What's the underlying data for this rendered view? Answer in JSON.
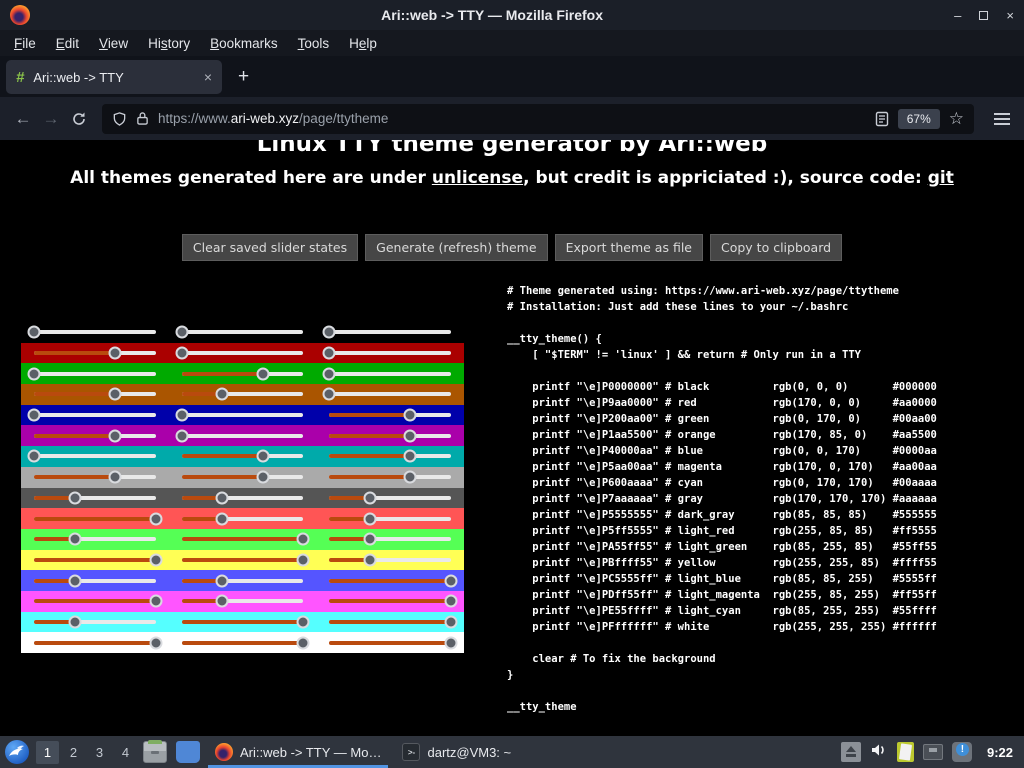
{
  "window": {
    "title": "Ari::web -> TTY — Mozilla Firefox",
    "controls": {
      "minimize": "–",
      "close": "×"
    }
  },
  "menubar": {
    "items": [
      {
        "name": "file",
        "pre": "",
        "key": "F",
        "post": "ile"
      },
      {
        "name": "edit",
        "pre": "",
        "key": "E",
        "post": "dit"
      },
      {
        "name": "view",
        "pre": "",
        "key": "V",
        "post": "iew"
      },
      {
        "name": "history",
        "pre": "Hi",
        "key": "s",
        "post": "tory"
      },
      {
        "name": "bookmarks",
        "pre": "",
        "key": "B",
        "post": "ookmarks"
      },
      {
        "name": "tools",
        "pre": "",
        "key": "T",
        "post": "ools"
      },
      {
        "name": "help",
        "pre": "H",
        "key": "e",
        "post": "lp"
      }
    ]
  },
  "tabbar": {
    "tab": {
      "favicon": "#",
      "label": "Ari::web -> TTY",
      "close": "×"
    },
    "new_tab": "+"
  },
  "navbar": {
    "back": "←",
    "forward": "→",
    "url": {
      "scheme": "https://www.",
      "domain": "ari-web.xyz",
      "path": "/page/ttytheme"
    },
    "zoom_level": "67%",
    "star": "☆"
  },
  "content": {
    "heading": "Linux TTY theme generator by Ari::web",
    "subtitle": {
      "part1": "All themes generated here are under ",
      "link1": "unlicense",
      "part2": ", but credit is appriciated :), source code: ",
      "link2": "git"
    },
    "buttons": [
      "Clear saved slider states",
      "Generate (refresh) theme",
      "Export theme as file",
      "Copy to clipboard"
    ],
    "sliders": {
      "rows": [
        {
          "name": "black",
          "hex": "#000000",
          "rgb": [
            0,
            0,
            0
          ]
        },
        {
          "name": "red",
          "hex": "#aa0000",
          "rgb": [
            170,
            0,
            0
          ]
        },
        {
          "name": "green",
          "hex": "#00aa00",
          "rgb": [
            0,
            170,
            0
          ]
        },
        {
          "name": "orange",
          "hex": "#aa5500",
          "rgb": [
            170,
            85,
            0
          ]
        },
        {
          "name": "blue",
          "hex": "#0000aa",
          "rgb": [
            0,
            0,
            170
          ]
        },
        {
          "name": "magenta",
          "hex": "#aa00aa",
          "rgb": [
            170,
            0,
            170
          ]
        },
        {
          "name": "cyan",
          "hex": "#00aaaa",
          "rgb": [
            0,
            170,
            170
          ]
        },
        {
          "name": "gray",
          "hex": "#aaaaaa",
          "rgb": [
            170,
            170,
            170
          ]
        },
        {
          "name": "dark_gray",
          "hex": "#555555",
          "rgb": [
            85,
            85,
            85
          ]
        },
        {
          "name": "light_red",
          "hex": "#ff5555",
          "rgb": [
            255,
            85,
            85
          ]
        },
        {
          "name": "light_green",
          "hex": "#55ff55",
          "rgb": [
            85,
            255,
            85
          ]
        },
        {
          "name": "yellow",
          "hex": "#ffff55",
          "rgb": [
            255,
            255,
            85
          ]
        },
        {
          "name": "light_blue",
          "hex": "#5555ff",
          "rgb": [
            85,
            85,
            255
          ]
        },
        {
          "name": "light_magenta",
          "hex": "#ff55ff",
          "rgb": [
            255,
            85,
            255
          ]
        },
        {
          "name": "light_cyan",
          "hex": "#55ffff",
          "rgb": [
            85,
            255,
            255
          ]
        },
        {
          "name": "white",
          "hex": "#ffffff",
          "rgb": [
            255,
            255,
            255
          ]
        }
      ]
    },
    "code": {
      "text": "# Theme generated using: https://www.ari-web.xyz/page/ttytheme\n# Installation: Just add these lines to your ~/.bashrc\n\n__tty_theme() {\n    [ \"$TERM\" != 'linux' ] && return # Only run in a TTY\n\n    printf \"\\e]P0000000\" # black          rgb(0, 0, 0)       #000000\n    printf \"\\e]P9aa0000\" # red            rgb(170, 0, 0)     #aa0000\n    printf \"\\e]P200aa00\" # green          rgb(0, 170, 0)     #00aa00\n    printf \"\\e]P1aa5500\" # orange         rgb(170, 85, 0)    #aa5500\n    printf \"\\e]P40000aa\" # blue           rgb(0, 0, 170)     #0000aa\n    printf \"\\e]P5aa00aa\" # magenta        rgb(170, 0, 170)   #aa00aa\n    printf \"\\e]P600aaaa\" # cyan           rgb(0, 170, 170)   #00aaaa\n    printf \"\\e]P7aaaaaa\" # gray           rgb(170, 170, 170) #aaaaaa\n    printf \"\\e]P5555555\" # dark_gray      rgb(85, 85, 85)    #555555\n    printf \"\\e]P5ff5555\" # light_red      rgb(255, 85, 85)   #ff5555\n    printf \"\\e]PA55ff55\" # light_green    rgb(85, 255, 85)   #55ff55\n    printf \"\\e]PBffff55\" # yellow         rgb(255, 255, 85)  #ffff55\n    printf \"\\e]PC5555ff\" # light_blue     rgb(85, 85, 255)   #5555ff\n    printf \"\\e]PDff55ff\" # light_magenta  rgb(255, 85, 255)  #ff55ff\n    printf \"\\e]PE55ffff\" # light_cyan     rgb(85, 255, 255)  #55ffff\n    printf \"\\e]PFffffff\" # white          rgb(255, 255, 255) #ffffff\n\n    clear # To fix the background\n}\n\n__tty_theme"
    }
  },
  "taskbar": {
    "workspaces": [
      "1",
      "2",
      "3",
      "4"
    ],
    "active_workspace": "1",
    "tasks": [
      {
        "label": "Ari::web -> TTY — Mo…",
        "active": true
      },
      {
        "label": "dartz@VM3: ~",
        "active": false
      }
    ],
    "terminal_icon_glyph": ">-",
    "clock": "9:22"
  },
  "colors": {
    "task_active_underline": "#5294e2",
    "slider_progress": "#b94a0e",
    "slider_track": "#e9e9e9",
    "tab_favicon_green": "#8ac24a",
    "taskbar_bg": "#2f343d",
    "page_bg": "#000000"
  }
}
